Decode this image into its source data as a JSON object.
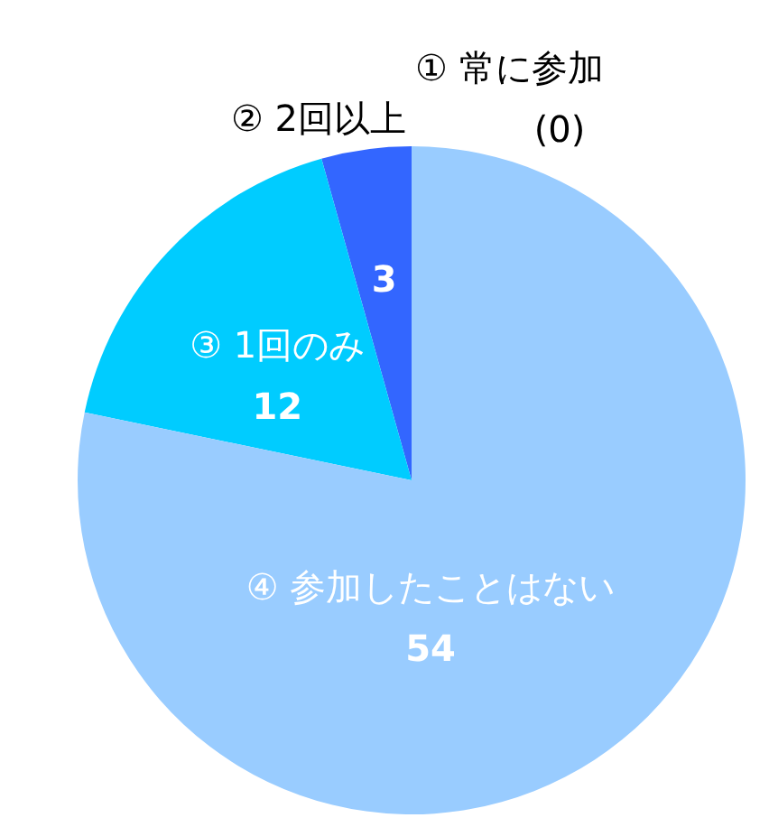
{
  "chart_data": {
    "type": "pie",
    "categories": [
      "① 常に参加",
      "② 2回以上",
      "③ 1回のみ",
      "④ 参加したことはない"
    ],
    "values": [
      0,
      3,
      12,
      54
    ],
    "value_labels": [
      "(0)",
      "3",
      "12",
      "54"
    ],
    "colors": [
      null,
      "#3366ff",
      "#00ccff",
      "#99ccff"
    ]
  }
}
